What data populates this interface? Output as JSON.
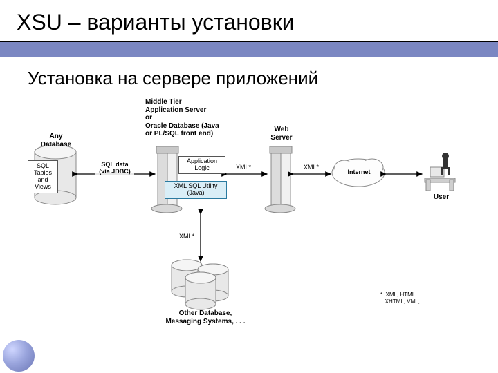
{
  "title": "XSU – варианты установки",
  "subtitle": "Установка на сервере приложений",
  "colors": {
    "band": "#7b87c2",
    "highlight_fill": "#d9eef7",
    "highlight_stroke": "#2a7aa0",
    "node_fill": "#e8e8e8",
    "node_stroke": "#888888",
    "text": "#000000"
  },
  "nodes": {
    "db": {
      "label": "Any\nDatabase",
      "sublabel": "SQL\nTables\nand\nViews"
    },
    "mid": {
      "label": "Middle Tier\nApplication Server\nor\nOracle Database (Java\nor PL/SQL front end)"
    },
    "applogic": {
      "label": "Application\nLogic"
    },
    "xsu": {
      "label": "XML SQL Utility\n(Java)"
    },
    "web": {
      "label": "Web\nServer"
    },
    "internet": {
      "label": "Internet"
    },
    "user": {
      "label": "User"
    },
    "other": {
      "label": "Other Database,\nMessaging Systems, . . ."
    }
  },
  "edges": {
    "db_mid": "SQL data\n(via JDBC)",
    "mid_web": "XML*",
    "web_internet": "XML*",
    "mid_other": "XML*"
  },
  "footnote": "*  XML, HTML,\n   XHTML, VML, . . ."
}
